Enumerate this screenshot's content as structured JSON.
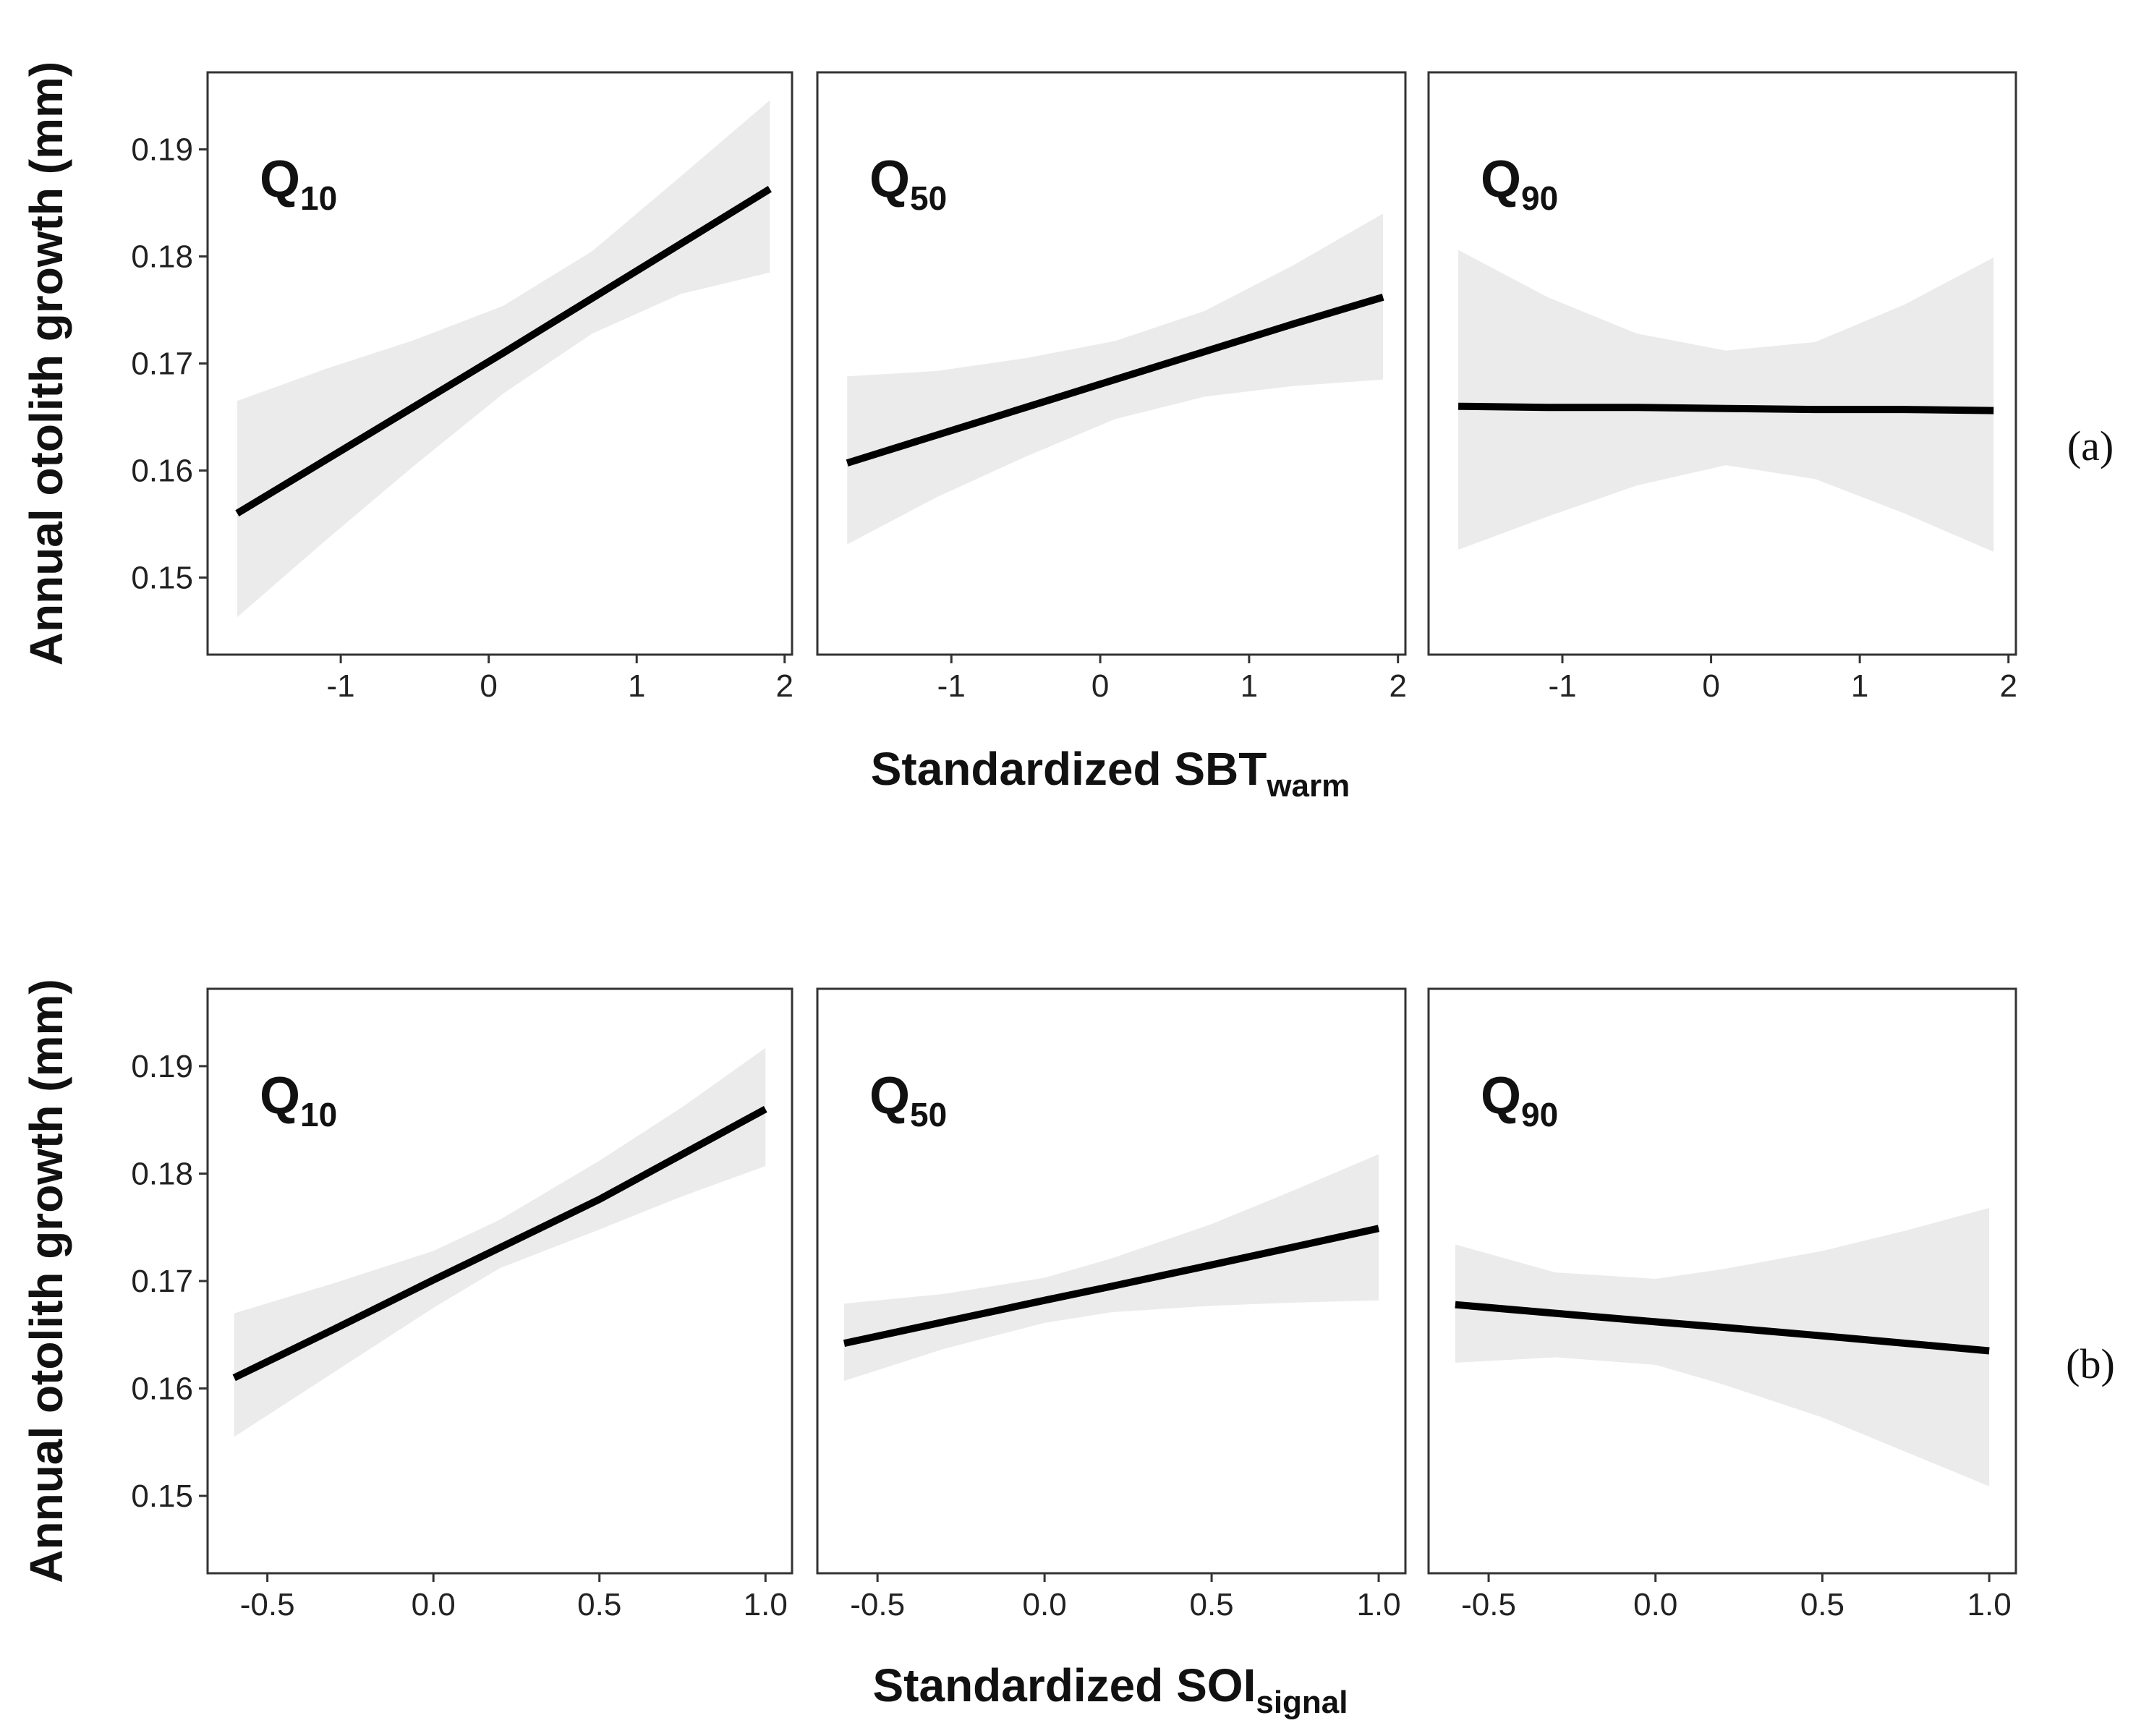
{
  "chart_data": [
    {
      "type": "line",
      "panel_tag": "(a)",
      "ylabel": "Annual otolith growth (mm)",
      "xlabel": "Standardized SBT",
      "xlabel_sub": "warm",
      "ylim": [
        0.1428,
        0.1972
      ],
      "yticks": [
        0.15,
        0.16,
        0.17,
        0.18,
        0.19
      ],
      "ytick_labels": [
        "0.15",
        "0.16",
        "0.17",
        "0.18",
        "0.19"
      ],
      "xlim": [
        -1.9,
        2.05
      ],
      "xticks": [
        -1,
        0,
        1,
        2
      ],
      "xtick_labels": [
        "-1",
        "0",
        "1",
        "2"
      ],
      "facets": [
        {
          "label": "Q",
          "label_sub": "10",
          "x": [
            -1.7,
            -1.1,
            -0.5,
            0.1,
            0.7,
            1.3,
            1.9
          ],
          "fit": [
            0.156,
            0.161,
            0.166,
            0.171,
            0.1761,
            0.1812,
            0.1863
          ],
          "lower": [
            0.1463,
            0.1535,
            0.1605,
            0.1672,
            0.1728,
            0.1765,
            0.1785
          ],
          "upper": [
            0.1665,
            0.1695,
            0.1722,
            0.1754,
            0.1805,
            0.1875,
            0.1946
          ]
        },
        {
          "label": "Q",
          "label_sub": "50",
          "x": [
            -1.7,
            -1.1,
            -0.5,
            0.1,
            0.7,
            1.3,
            1.9
          ],
          "fit": [
            0.1607,
            0.1633,
            0.1659,
            0.1685,
            0.1711,
            0.1737,
            0.1762
          ],
          "lower": [
            0.1531,
            0.1575,
            0.1613,
            0.1648,
            0.1669,
            0.1679,
            0.1685
          ],
          "upper": [
            0.1688,
            0.1693,
            0.1705,
            0.1721,
            0.1749,
            0.1792,
            0.184
          ]
        },
        {
          "label": "Q",
          "label_sub": "90",
          "x": [
            -1.7,
            -1.1,
            -0.5,
            0.1,
            0.7,
            1.3,
            1.9
          ],
          "fit": [
            0.166,
            0.1659,
            0.1659,
            0.1658,
            0.1657,
            0.1657,
            0.1656
          ],
          "lower": [
            0.1526,
            0.1557,
            0.1586,
            0.1605,
            0.1592,
            0.156,
            0.1524
          ],
          "upper": [
            0.1806,
            0.1762,
            0.1728,
            0.1712,
            0.172,
            0.1755,
            0.1799
          ]
        }
      ]
    },
    {
      "type": "line",
      "panel_tag": "(b)",
      "ylabel": "Annual otolith growth (mm)",
      "xlabel": "Standardized SOI",
      "xlabel_sub": "signal",
      "ylim": [
        0.1428,
        0.1972
      ],
      "yticks": [
        0.15,
        0.16,
        0.17,
        0.18,
        0.19
      ],
      "ytick_labels": [
        "0.15",
        "0.16",
        "0.17",
        "0.18",
        "0.19"
      ],
      "xlim": [
        -0.68,
        1.08
      ],
      "xticks": [
        -0.5,
        0.0,
        0.5,
        1.0
      ],
      "xtick_labels": [
        "-0.5",
        "0.0",
        "0.5",
        "1.0"
      ],
      "facets": [
        {
          "label": "Q",
          "label_sub": "10",
          "x": [
            -0.6,
            -0.3,
            0.0,
            0.2,
            0.5,
            0.75,
            1.0
          ],
          "fit": [
            0.161,
            0.1655,
            0.1701,
            0.1731,
            0.1776,
            0.1818,
            0.186
          ],
          "lower": [
            0.1555,
            0.1615,
            0.1675,
            0.1712,
            0.1748,
            0.1779,
            0.1807
          ],
          "upper": [
            0.167,
            0.1698,
            0.1728,
            0.1757,
            0.1812,
            0.1862,
            0.1917
          ]
        },
        {
          "label": "Q",
          "label_sub": "50",
          "x": [
            -0.6,
            -0.3,
            0.0,
            0.2,
            0.5,
            0.75,
            1.0
          ],
          "fit": [
            0.1642,
            0.1662,
            0.1682,
            0.1695,
            0.1715,
            0.1732,
            0.1749
          ],
          "lower": [
            0.1607,
            0.1637,
            0.1661,
            0.1671,
            0.1677,
            0.168,
            0.1682
          ],
          "upper": [
            0.1679,
            0.1688,
            0.1703,
            0.1721,
            0.1753,
            0.1785,
            0.1818
          ]
        },
        {
          "label": "Q",
          "label_sub": "90",
          "x": [
            -0.6,
            -0.3,
            0.0,
            0.2,
            0.5,
            0.75,
            1.0
          ],
          "fit": [
            0.1678,
            0.167,
            0.1662,
            0.1657,
            0.1649,
            0.1642,
            0.1635
          ],
          "lower": [
            0.1624,
            0.1629,
            0.1622,
            0.1604,
            0.1573,
            0.1541,
            0.1509
          ],
          "upper": [
            0.1734,
            0.1708,
            0.1702,
            0.1711,
            0.1728,
            0.1747,
            0.1768
          ]
        }
      ]
    }
  ]
}
